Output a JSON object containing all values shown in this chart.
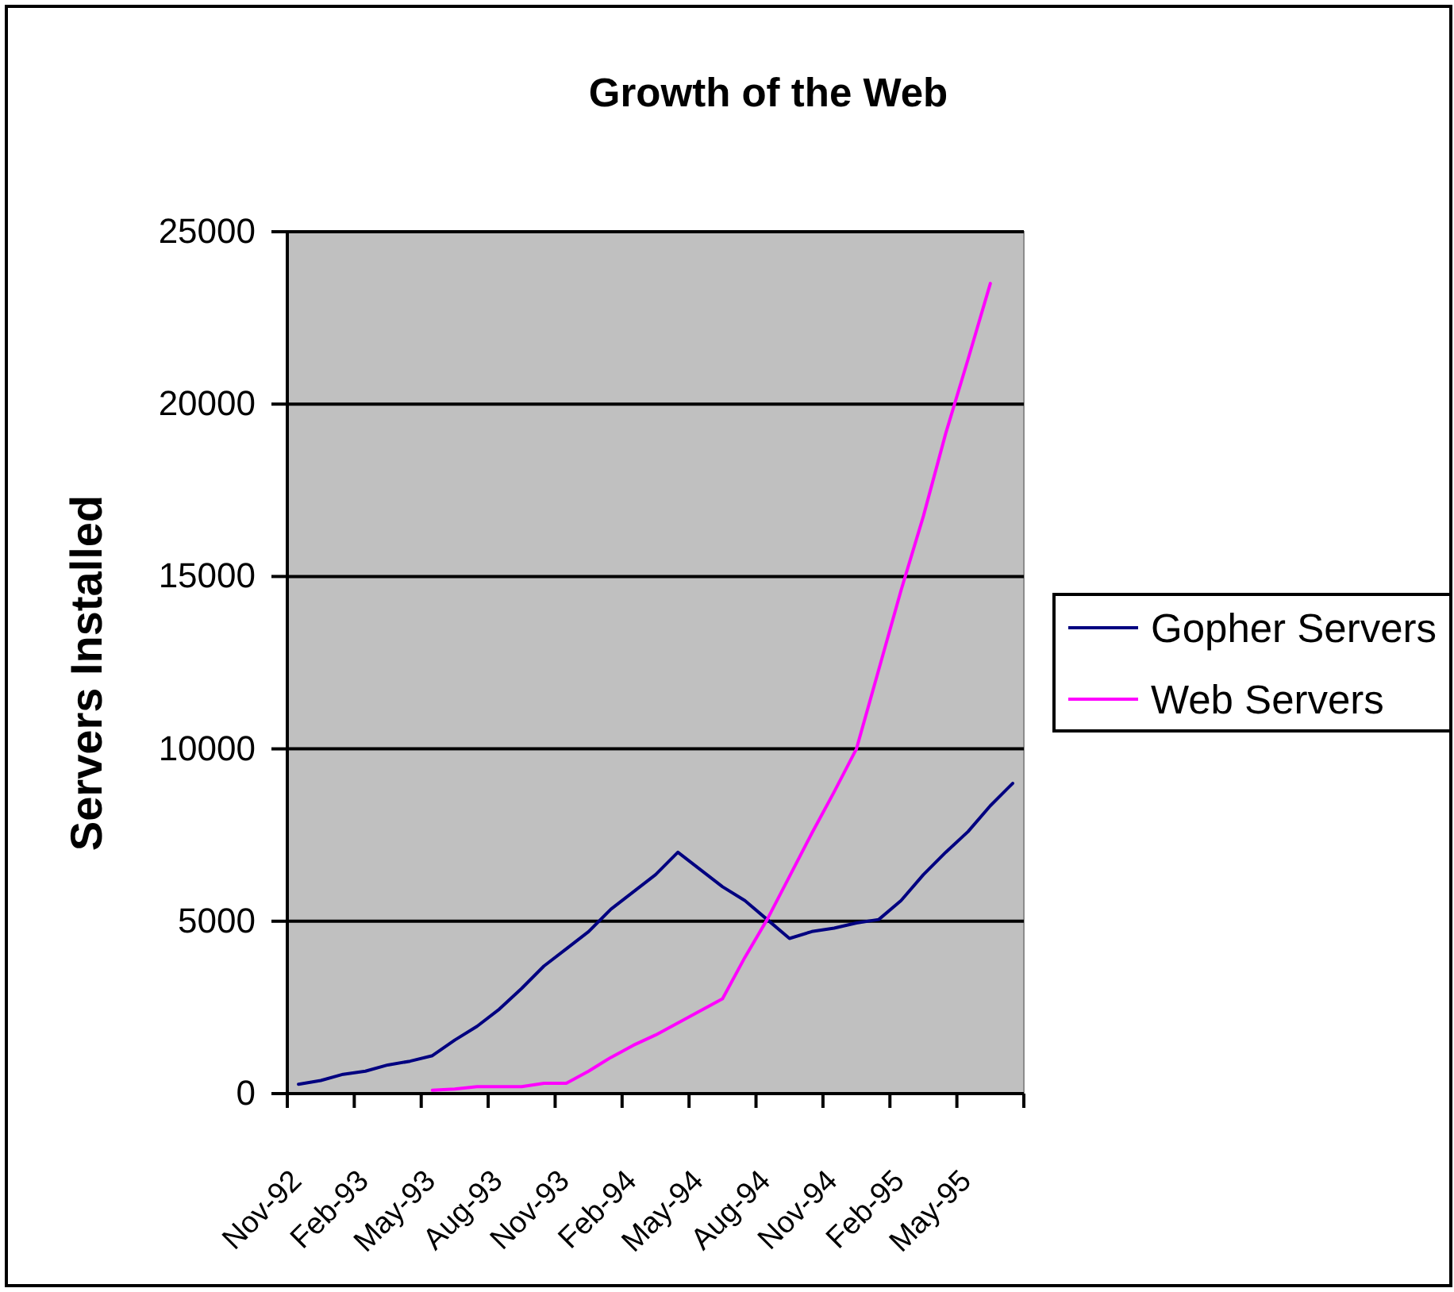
{
  "chart_data": {
    "type": "line",
    "title": "Growth of the Web",
    "ylabel": "Servers Installed",
    "categories": [
      "Nov-92",
      null,
      null,
      "Feb-93",
      null,
      null,
      "May-93",
      null,
      null,
      "Aug-93",
      null,
      null,
      "Nov-93",
      null,
      null,
      "Feb-94",
      null,
      null,
      "May-94",
      null,
      null,
      "Aug-94",
      null,
      null,
      "Nov-94",
      null,
      null,
      "Feb-95",
      null,
      null,
      "May-95",
      null,
      null
    ],
    "series": [
      {
        "name": "Gopher Servers",
        "color": "#000080",
        "values": [
          270,
          380,
          560,
          650,
          830,
          940,
          1100,
          1550,
          1950,
          2450,
          3050,
          3700,
          4200,
          4700,
          5350,
          5850,
          6350,
          7000,
          6500,
          6000,
          5600,
          5050,
          4500,
          4700,
          4800,
          4950,
          5050,
          5600,
          6350,
          7000,
          7600,
          8350,
          9000
        ]
      },
      {
        "name": "Web Servers",
        "color": "#ff00ff",
        "values": [
          null,
          null,
          null,
          null,
          null,
          null,
          100,
          130,
          200,
          200,
          200,
          300,
          300,
          650,
          1050,
          1400,
          1700,
          2050,
          2400,
          2750,
          3950,
          5050,
          6300,
          7550,
          8750,
          10000,
          12300,
          14600,
          16750,
          19150,
          21300,
          23500,
          null
        ]
      }
    ],
    "ylim": [
      0,
      25000
    ],
    "yticks": [
      0,
      5000,
      10000,
      15000,
      20000,
      25000
    ],
    "grid": "y",
    "legend": "right"
  }
}
